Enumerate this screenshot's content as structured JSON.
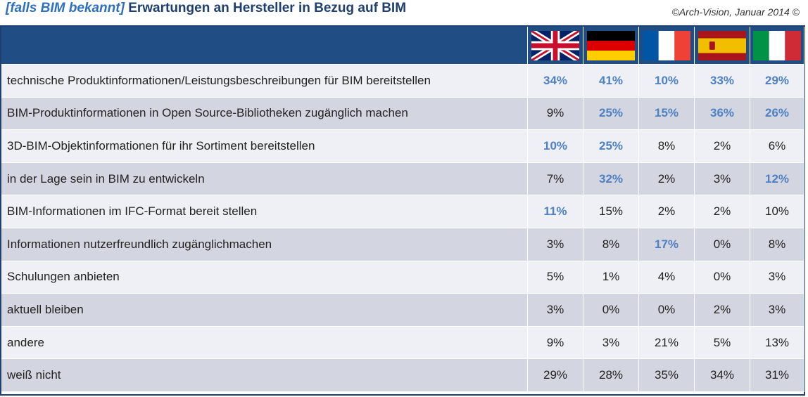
{
  "header": {
    "title_prefix": "[falls BIM bekannt]",
    "title_main": "Erwartungen an Hersteller in Bezug auf BIM",
    "copyright": "©Arch-Vision, Januar 2014 ©"
  },
  "chart_data": {
    "type": "table",
    "columns": [
      {
        "flag": "uk-flag-icon"
      },
      {
        "flag": "germany-flag-icon"
      },
      {
        "flag": "france-flag-icon"
      },
      {
        "flag": "spain-flag-icon"
      },
      {
        "flag": "italy-flag-icon"
      }
    ],
    "highlight_color": "#4f81c2",
    "rows": [
      {
        "label": "technische Produktinformationen/Leistungsbeschreibungen für BIM bereitstellen",
        "values": [
          "34%",
          "41%",
          "10%",
          "33%",
          "29%"
        ],
        "highlight": [
          true,
          true,
          true,
          true,
          true
        ]
      },
      {
        "label": "BIM-Produktinformationen in Open Source-Bibliotheken zugänglich machen",
        "values": [
          "9%",
          "25%",
          "15%",
          "36%",
          "26%"
        ],
        "highlight": [
          false,
          true,
          true,
          true,
          true
        ]
      },
      {
        "label": "3D-BIM-Objektinformationen für ihr Sortiment bereitstellen",
        "values": [
          "10%",
          "25%",
          "8%",
          "2%",
          "6%"
        ],
        "highlight": [
          true,
          true,
          false,
          false,
          false
        ]
      },
      {
        "label": "in der Lage sein in BIM zu entwickeln",
        "values": [
          "7%",
          "32%",
          "2%",
          "3%",
          "12%"
        ],
        "highlight": [
          false,
          true,
          false,
          false,
          true
        ]
      },
      {
        "label": "BIM-Informationen im IFC-Format bereit stellen",
        "values": [
          "11%",
          "15%",
          "2%",
          "2%",
          "10%"
        ],
        "highlight": [
          true,
          false,
          false,
          false,
          false
        ]
      },
      {
        "label": "Informationen nutzerfreundlich zugänglichmachen",
        "values": [
          "3%",
          "8%",
          "17%",
          "0%",
          "8%"
        ],
        "highlight": [
          false,
          false,
          true,
          false,
          false
        ]
      },
      {
        "label": "Schulungen anbieten",
        "values": [
          "5%",
          "1%",
          "4%",
          "0%",
          "3%"
        ],
        "highlight": [
          false,
          false,
          false,
          false,
          false
        ]
      },
      {
        "label": "aktuell bleiben",
        "values": [
          "3%",
          "0%",
          "0%",
          "2%",
          "3%"
        ],
        "highlight": [
          false,
          false,
          false,
          false,
          false
        ]
      },
      {
        "label": "andere",
        "values": [
          "9%",
          "3%",
          "21%",
          "5%",
          "13%"
        ],
        "highlight": [
          false,
          false,
          false,
          false,
          false
        ]
      },
      {
        "label": "weiß nicht",
        "values": [
          "29%",
          "28%",
          "35%",
          "34%",
          "31%"
        ],
        "highlight": [
          false,
          false,
          false,
          false,
          false
        ]
      }
    ]
  }
}
